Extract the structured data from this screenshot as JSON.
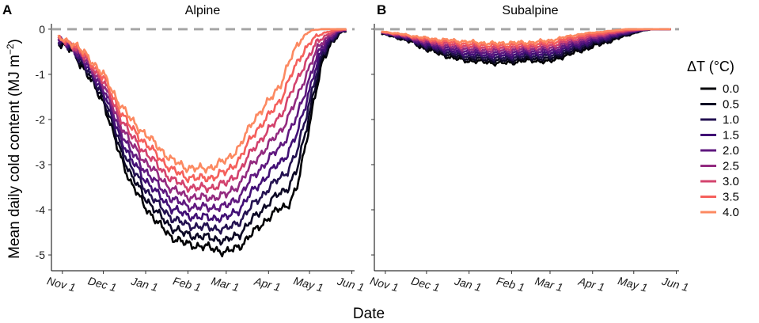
{
  "chart_data": {
    "type": "line",
    "x_axis_title": "Date",
    "y_axis_title": "Mean daily cold content (MJ m",
    "y_axis_title_sup": "−2",
    "y_axis_title_close": ")",
    "y_ticks": [
      0,
      -1,
      -2,
      -3,
      -4,
      -5
    ],
    "y_tick_labels": [
      "0",
      "-1",
      "-2",
      "-3",
      "-4",
      "-5"
    ],
    "ylim": [
      -5.35,
      0.12
    ],
    "x_tick_labels": [
      "Nov 1",
      "Dec 1",
      "Jan 1",
      "Feb 1",
      "Mar 1",
      "Apr 1",
      "May 1",
      "Jun 1"
    ],
    "x_tick_days": [
      0,
      30,
      61,
      92,
      120,
      151,
      181,
      212
    ],
    "xlim": [
      -8,
      214
    ],
    "reference_line": 0,
    "legend_title": "ΔT (°C)",
    "legend_labels": [
      "0.0",
      "0.5",
      "1.0",
      "1.5",
      "2.0",
      "2.5",
      "3.0",
      "3.5",
      "4.0"
    ],
    "series_colors": [
      "#000004",
      "#0b0724",
      "#231151",
      "#410f75",
      "#5f187f",
      "#932b80",
      "#d3436e",
      "#f5605c",
      "#fc8961"
    ],
    "panels": [
      {
        "letter": "A",
        "title": "Alpine",
        "base_curve": [
          [
            -3,
            -0.3
          ],
          [
            8,
            -0.5
          ],
          [
            20,
            -1.1
          ],
          [
            30,
            -1.6
          ],
          [
            40,
            -2.6
          ],
          [
            50,
            -3.4
          ],
          [
            60,
            -3.9
          ],
          [
            70,
            -4.3
          ],
          [
            80,
            -4.6
          ],
          [
            90,
            -4.75
          ],
          [
            100,
            -4.8
          ],
          [
            110,
            -4.85
          ],
          [
            120,
            -4.95
          ],
          [
            130,
            -4.8
          ],
          [
            140,
            -4.5
          ],
          [
            150,
            -4.2
          ],
          [
            158,
            -4.0
          ],
          [
            165,
            -3.9
          ],
          [
            172,
            -3.5
          ],
          [
            178,
            -2.6
          ],
          [
            184,
            -1.6
          ],
          [
            190,
            -0.8
          ],
          [
            196,
            -0.35
          ],
          [
            202,
            -0.12
          ],
          [
            206,
            -0.05
          ]
        ],
        "warmer_curve": [
          [
            -3,
            -0.2
          ],
          [
            8,
            -0.3
          ],
          [
            20,
            -0.65
          ],
          [
            30,
            -1.0
          ],
          [
            40,
            -1.55
          ],
          [
            50,
            -2.0
          ],
          [
            60,
            -2.3
          ],
          [
            70,
            -2.6
          ],
          [
            80,
            -2.9
          ],
          [
            90,
            -3.05
          ],
          [
            100,
            -3.1
          ],
          [
            110,
            -3.05
          ],
          [
            120,
            -2.9
          ],
          [
            130,
            -2.6
          ],
          [
            140,
            -2.0
          ],
          [
            150,
            -1.65
          ],
          [
            160,
            -1.2
          ],
          [
            168,
            -0.6
          ],
          [
            175,
            -0.2
          ],
          [
            182,
            -0.03
          ],
          [
            190,
            0.0
          ]
        ]
      },
      {
        "letter": "B",
        "title": "Subalpine",
        "base_curve": [
          [
            -3,
            -0.1
          ],
          [
            10,
            -0.2
          ],
          [
            20,
            -0.3
          ],
          [
            30,
            -0.45
          ],
          [
            40,
            -0.55
          ],
          [
            50,
            -0.65
          ],
          [
            60,
            -0.7
          ],
          [
            70,
            -0.72
          ],
          [
            80,
            -0.75
          ],
          [
            90,
            -0.75
          ],
          [
            100,
            -0.7
          ],
          [
            110,
            -0.7
          ],
          [
            120,
            -0.72
          ],
          [
            130,
            -0.6
          ],
          [
            140,
            -0.5
          ],
          [
            150,
            -0.4
          ],
          [
            160,
            -0.3
          ],
          [
            170,
            -0.2
          ],
          [
            180,
            -0.1
          ],
          [
            188,
            -0.03
          ],
          [
            195,
            0.0
          ]
        ],
        "warmer_curve": [
          [
            -3,
            -0.05
          ],
          [
            10,
            -0.1
          ],
          [
            20,
            -0.15
          ],
          [
            30,
            -0.2
          ],
          [
            40,
            -0.23
          ],
          [
            50,
            -0.25
          ],
          [
            60,
            -0.28
          ],
          [
            70,
            -0.3
          ],
          [
            80,
            -0.32
          ],
          [
            90,
            -0.3
          ],
          [
            100,
            -0.3
          ],
          [
            110,
            -0.28
          ],
          [
            120,
            -0.25
          ],
          [
            130,
            -0.18
          ],
          [
            140,
            -0.12
          ],
          [
            150,
            -0.08
          ],
          [
            160,
            -0.05
          ],
          [
            170,
            -0.02
          ],
          [
            175,
            0.0
          ]
        ]
      }
    ]
  }
}
